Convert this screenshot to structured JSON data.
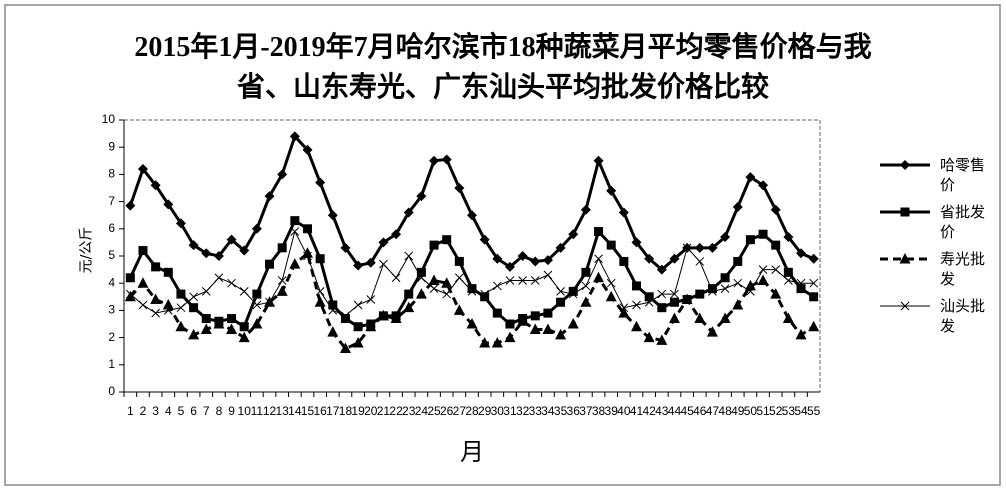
{
  "chart_data": {
    "type": "line",
    "title": "2015年1月-2019年7月哈尔滨市18种蔬菜月平均零售价格与我省、山东寿光、广东汕头平均批发价格比较",
    "x_label": "月",
    "y_label": "元/公斤",
    "categories": [
      "1",
      "2",
      "3",
      "4",
      "5",
      "6",
      "7",
      "8",
      "9",
      "10",
      "11",
      "12",
      "13",
      "14",
      "15",
      "16",
      "17",
      "18",
      "19",
      "20",
      "21",
      "22",
      "23",
      "24",
      "25",
      "26",
      "27",
      "28",
      "29",
      "30",
      "31",
      "32",
      "33",
      "34",
      "35",
      "36",
      "37",
      "38",
      "39",
      "40",
      "41",
      "42",
      "43",
      "44",
      "45",
      "46",
      "47",
      "48",
      "49",
      "50",
      "51",
      "52",
      "53",
      "54",
      "55"
    ],
    "ylim": [
      0,
      10
    ],
    "yticks": [
      0,
      1,
      2,
      3,
      4,
      5,
      6,
      7,
      8,
      9,
      10
    ],
    "series": [
      {
        "name": "哈零售价",
        "color": "#000000",
        "values": [
          6.85,
          8.2,
          7.6,
          6.9,
          6.2,
          5.4,
          5.1,
          5.0,
          5.6,
          5.2,
          6.0,
          7.2,
          8.0,
          9.4,
          8.9,
          7.7,
          6.5,
          5.3,
          4.65,
          4.75,
          5.5,
          5.8,
          6.6,
          7.2,
          8.5,
          8.55,
          7.5,
          6.5,
          5.6,
          4.9,
          4.6,
          5.0,
          4.8,
          4.85,
          5.3,
          5.8,
          6.7,
          8.5,
          7.4,
          6.6,
          5.5,
          4.9,
          4.5,
          4.9,
          5.3,
          5.3,
          5.3,
          5.7,
          6.8,
          7.9,
          7.6,
          6.7,
          5.7,
          5.1,
          4.9
        ]
      },
      {
        "name": "省批发价",
        "color": "#000000",
        "values": [
          4.2,
          5.2,
          4.6,
          4.4,
          3.6,
          3.1,
          2.7,
          2.6,
          2.7,
          2.4,
          3.6,
          4.7,
          5.3,
          6.3,
          6.0,
          4.9,
          3.2,
          2.7,
          2.4,
          2.5,
          2.8,
          2.8,
          3.6,
          4.4,
          5.4,
          5.6,
          4.8,
          3.8,
          3.5,
          2.9,
          2.5,
          2.7,
          2.8,
          2.9,
          3.3,
          3.7,
          4.4,
          5.9,
          5.4,
          4.8,
          3.9,
          3.5,
          3.1,
          3.3,
          3.4,
          3.6,
          3.8,
          4.2,
          4.8,
          5.6,
          5.8,
          5.4,
          4.4,
          3.8,
          3.5
        ]
      },
      {
        "name": "寿光批发",
        "color": "#000000",
        "values": [
          3.5,
          4.0,
          3.4,
          3.2,
          2.4,
          2.1,
          2.3,
          2.5,
          2.3,
          2.0,
          2.5,
          3.3,
          3.7,
          4.7,
          5.1,
          3.3,
          2.2,
          1.6,
          1.8,
          2.4,
          2.8,
          2.7,
          3.1,
          3.6,
          4.1,
          4.0,
          3.0,
          2.5,
          1.8,
          1.8,
          2.0,
          2.6,
          2.3,
          2.3,
          2.1,
          2.5,
          3.3,
          4.2,
          3.5,
          2.9,
          2.4,
          2.0,
          1.9,
          2.7,
          3.4,
          2.7,
          2.2,
          2.7,
          3.2,
          3.9,
          4.1,
          3.6,
          2.7,
          2.1,
          2.4
        ]
      },
      {
        "name": "汕头批发",
        "color": "#000000",
        "values": [
          3.6,
          3.2,
          2.9,
          3.0,
          3.1,
          3.5,
          3.7,
          4.2,
          4.0,
          3.7,
          3.2,
          3.3,
          4.1,
          5.9,
          5.0,
          3.7,
          3.0,
          2.8,
          3.2,
          3.4,
          4.7,
          4.2,
          5.0,
          4.2,
          3.8,
          3.6,
          4.2,
          3.7,
          3.6,
          3.9,
          4.1,
          4.1,
          4.1,
          4.3,
          3.7,
          3.6,
          3.9,
          4.9,
          4.0,
          3.1,
          3.2,
          3.3,
          3.6,
          3.6,
          5.3,
          4.8,
          3.7,
          3.8,
          4.0,
          3.7,
          4.5,
          4.5,
          4.1,
          4.0,
          4.0
        ]
      }
    ]
  }
}
